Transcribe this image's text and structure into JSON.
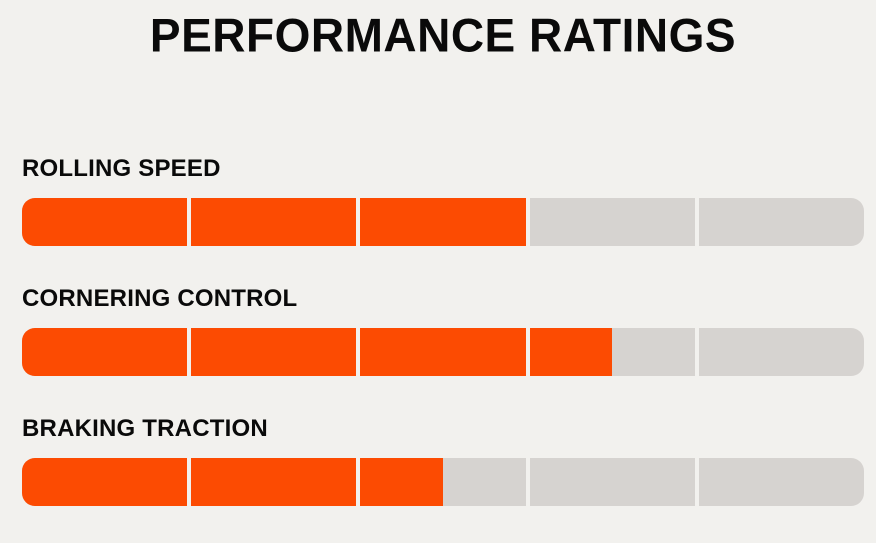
{
  "chart_data": {
    "type": "bar",
    "orientation": "horizontal",
    "title": "PERFORMANCE RATINGS",
    "categories": [
      "ROLLING SPEED",
      "CORNERING CONTROL",
      "BRAKING TRACTION"
    ],
    "values": [
      3,
      3.5,
      2.5
    ],
    "max": 5,
    "segments_per_bar": 5,
    "xlim": [
      0,
      5
    ],
    "legend": false,
    "grid": false,
    "colors": {
      "accent": "#FC4B02",
      "track": "#D6D3D0",
      "background": "#F2F1EE",
      "text": "#0A0A0A"
    }
  }
}
